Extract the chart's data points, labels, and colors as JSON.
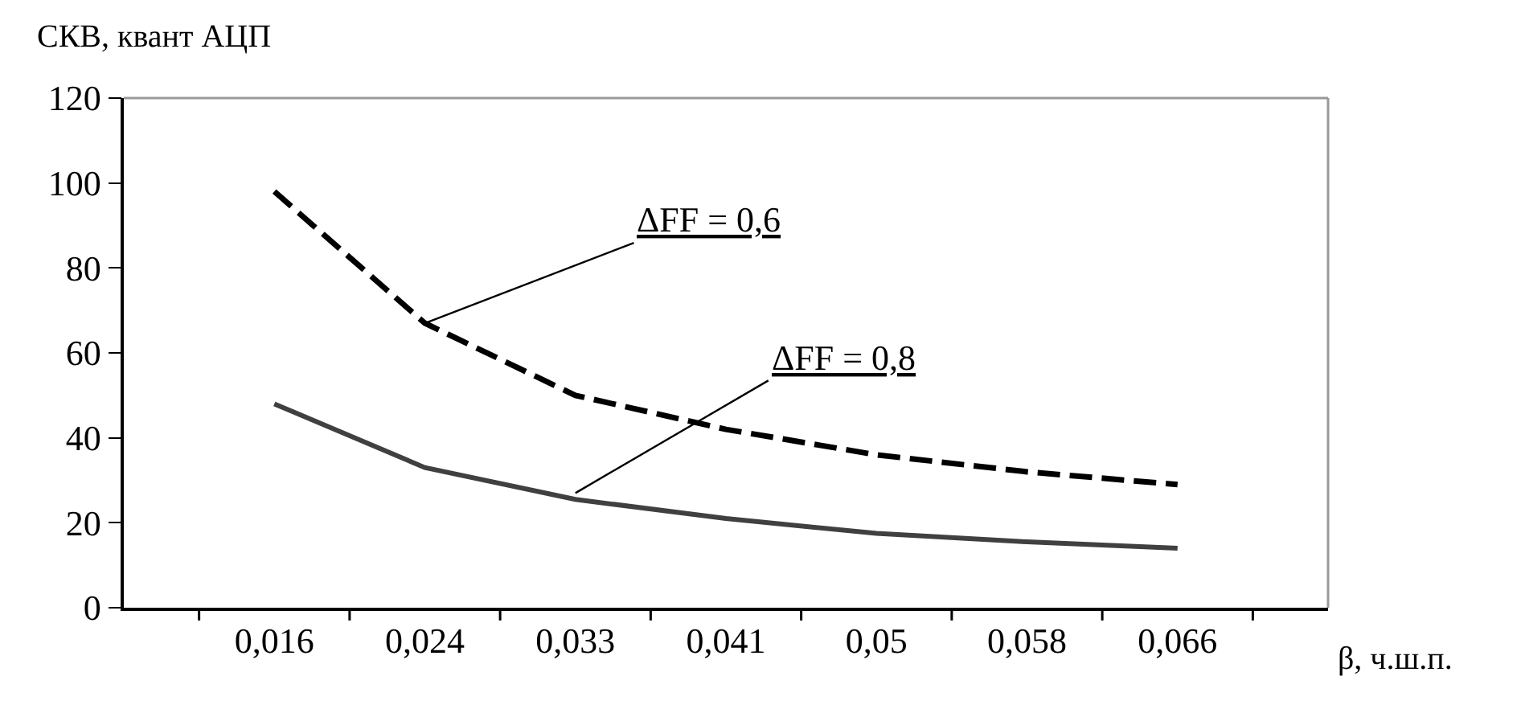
{
  "chart_data": {
    "type": "line",
    "ylabel": "СКВ, квант АЦП",
    "xlabel": "β, ч.ш.п.",
    "categories": [
      "0,016",
      "0,024",
      "0,033",
      "0,041",
      "0,05",
      "0,058",
      "0,066"
    ],
    "series": [
      {
        "color": "#000000",
        "line_style": "dashed",
        "values": [
          98,
          67,
          50,
          42,
          36,
          32,
          29
        ]
      },
      {
        "color": "#404040",
        "line_style": "solid",
        "values": [
          48,
          33,
          25.5,
          21,
          17.5,
          15.5,
          14
        ]
      }
    ],
    "ylim": [
      0,
      120
    ],
    "yticks": [
      0,
      20,
      40,
      60,
      80,
      100,
      120
    ],
    "legend": false,
    "marker": "none",
    "annotations": [
      {
        "text": "ΔFF = 0,6",
        "x": "0,024",
        "y": 67
      },
      {
        "text": "ΔFF = 0,8",
        "x": "0,033",
        "y": 27
      }
    ]
  }
}
